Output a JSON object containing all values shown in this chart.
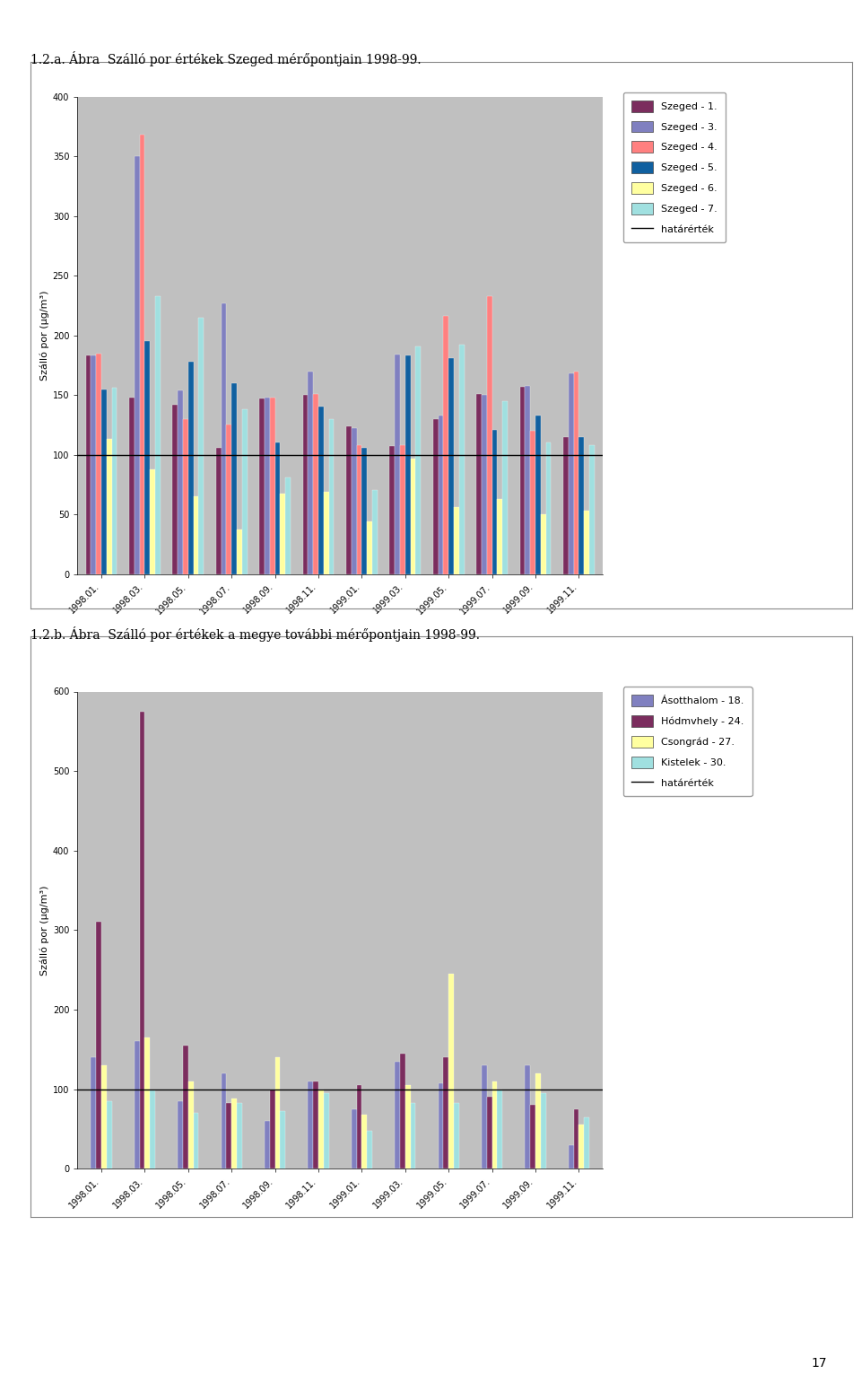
{
  "title1": "1.2.a. Ábra  Szálló por értékek Szeged mérőpontjain 1998-99.",
  "title2": "1.2.b. Ábra  Szálló por értékek a megye további mérőpontjain 1998-99.",
  "ylabel": "Szálló por (µg/m³)",
  "hatarertekLabel": "határérték",
  "months": [
    "1998.01.",
    "1998.03.",
    "1998.05.",
    "1998.07.",
    "1998.09.",
    "1998.11.",
    "1999.01.",
    "1999.03.",
    "1999.05.",
    "1999.07.",
    "1999.09.",
    "1999.11."
  ],
  "chart1": {
    "series_order": [
      "Szeged - 1.",
      "Szeged - 3.",
      "Szeged - 4.",
      "Szeged - 5.",
      "Szeged - 6.",
      "Szeged - 7."
    ],
    "colors": [
      "#7B2D5E",
      "#8080C0",
      "#FF8080",
      "#1060A0",
      "#FFFFA0",
      "#A0E0E0"
    ],
    "values": [
      [
        183,
        148,
        142,
        106,
        147,
        150,
        124,
        107,
        130,
        151,
        157,
        115
      ],
      [
        183,
        350,
        154,
        227,
        148,
        170,
        122,
        184,
        133,
        150,
        158,
        168
      ],
      [
        185,
        368,
        130,
        125,
        148,
        151,
        108,
        108,
        216,
        233,
        120,
        170
      ],
      [
        155,
        195,
        178,
        160,
        110,
        140,
        106,
        183,
        181,
        121,
        133,
        115
      ],
      [
        113,
        88,
        65,
        37,
        67,
        69,
        44,
        97,
        56,
        63,
        50,
        53
      ],
      [
        156,
        233,
        215,
        138,
        81,
        130,
        70,
        191,
        192,
        145,
        110,
        108
      ]
    ],
    "ylim": [
      0,
      400
    ],
    "yticks": [
      0,
      50,
      100,
      150,
      200,
      250,
      300,
      350,
      400
    ],
    "hatarertekValue": 100
  },
  "chart2": {
    "series_order": [
      "Ásotthalom - 18.",
      "Hódmvhely - 24.",
      "Csongrád - 27.",
      "Kistelek - 30."
    ],
    "colors": [
      "#8080C0",
      "#7B2D5E",
      "#FFFFA0",
      "#A0E0E0"
    ],
    "values": [
      [
        140,
        160,
        85,
        120,
        60,
        110,
        75,
        135,
        107,
        130,
        130,
        30
      ],
      [
        310,
        575,
        155,
        82,
        100,
        110,
        105,
        145,
        140,
        90,
        80,
        75
      ],
      [
        130,
        165,
        110,
        88,
        140,
        100,
        68,
        105,
        245,
        110,
        120,
        55
      ],
      [
        85,
        98,
        70,
        83,
        72,
        95,
        47,
        82,
        82,
        100,
        95,
        65
      ]
    ],
    "ylim": [
      0,
      600
    ],
    "yticks": [
      0,
      100,
      200,
      300,
      400,
      500,
      600
    ],
    "hatarertekValue": 100
  },
  "plot_bg": "#C0C0C0",
  "page_bg": "#FFFFFF",
  "outer_box_color": "#808080",
  "bar_edgecolor": "#FFFFFF",
  "bar_linewidth": 0.2,
  "title_fontsize": 10,
  "axis_label_fontsize": 8,
  "tick_fontsize": 7,
  "legend_fontsize": 8,
  "page_num": "17"
}
